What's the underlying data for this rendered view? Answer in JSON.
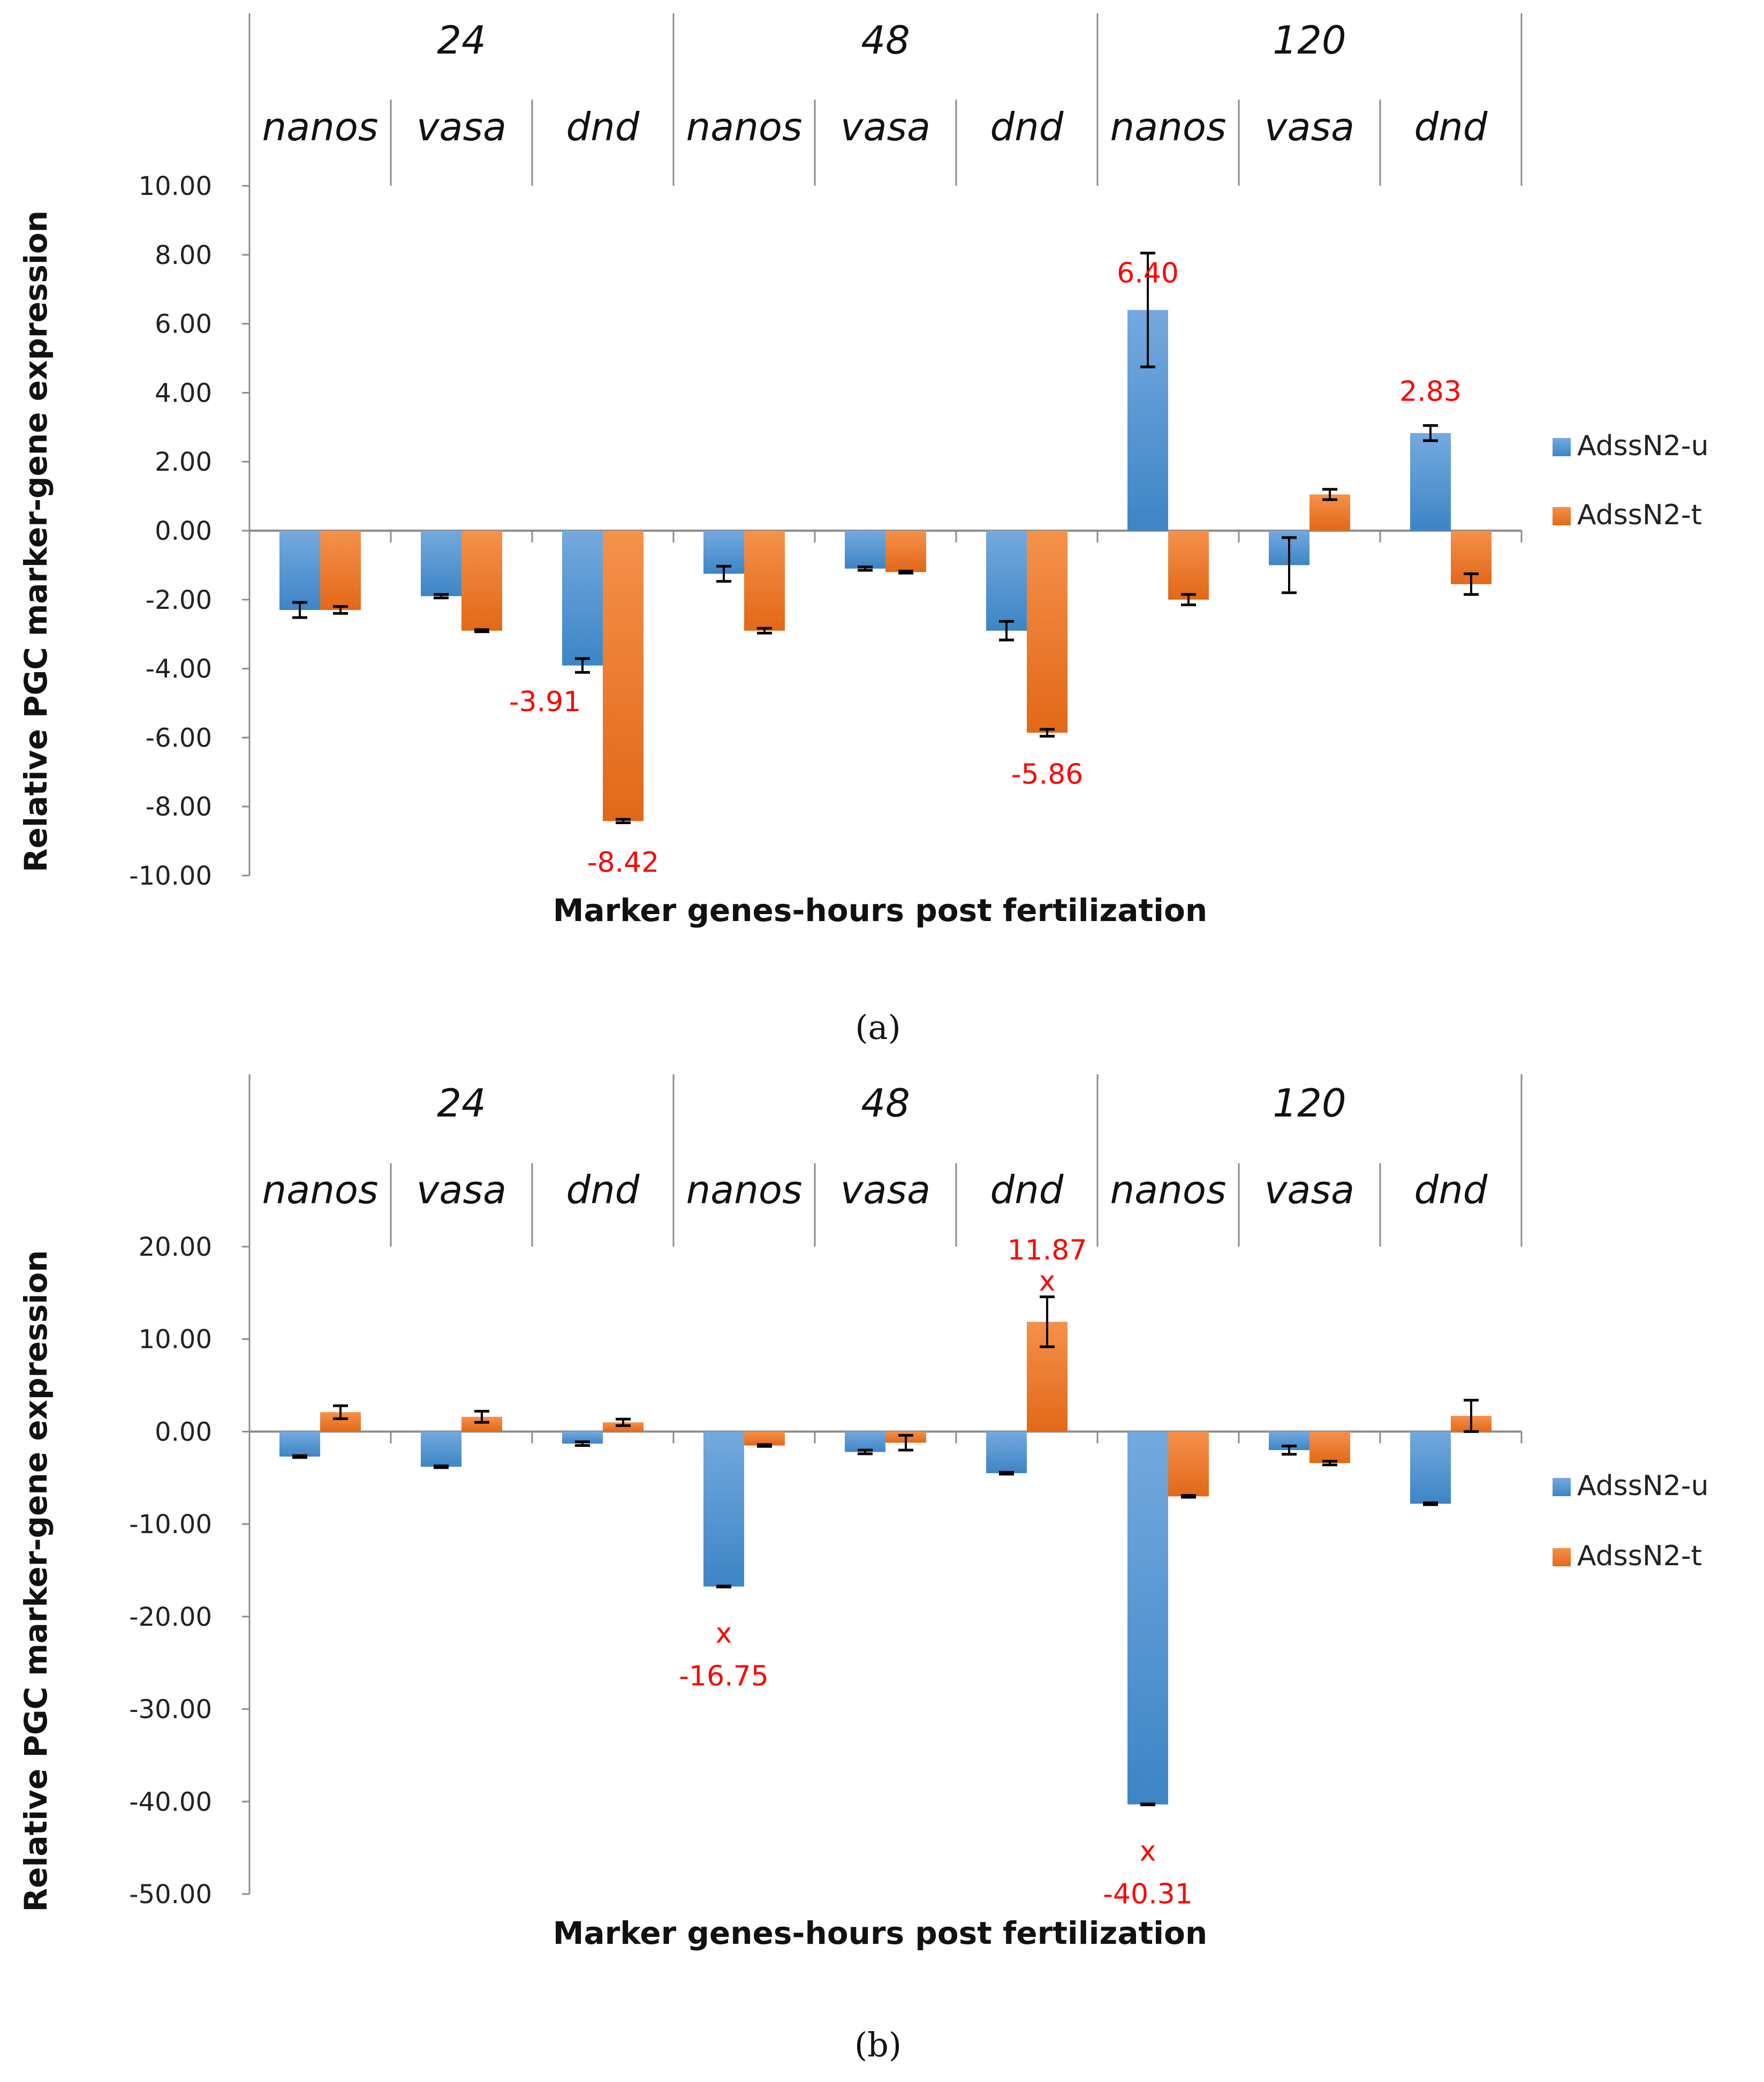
{
  "colors": {
    "u_top": "#74a9de",
    "u_bot": "#3d85c6",
    "t_top": "#f5914b",
    "t_bot": "#e26818",
    "axis": "#8c8c8c",
    "label": "#ff0000"
  },
  "chart_data": [
    {
      "type": "bar",
      "caption": "(a)",
      "xlabel": "Marker genes-hours post fertilization",
      "ylabel": "Relative PGC marker-gene expression",
      "ylim": [
        -10,
        10
      ],
      "yticks": [
        "10.00",
        "8.00",
        "6.00",
        "4.00",
        "2.00",
        "0.00",
        "-2.00",
        "-4.00",
        "-6.00",
        "-8.00",
        "-10.00"
      ],
      "ytick_values": [
        10,
        8,
        6,
        4,
        2,
        0,
        -2,
        -4,
        -6,
        -8,
        -10
      ],
      "groups": [
        "24",
        "48",
        "120"
      ],
      "categories": [
        "nanos",
        "vasa",
        "dnd",
        "nanos",
        "vasa",
        "dnd",
        "nanos",
        "vasa",
        "dnd"
      ],
      "legend": "right",
      "series": [
        {
          "name": "AdssN2-u",
          "values": [
            -2.3,
            -1.9,
            -3.91,
            -1.25,
            -1.1,
            -2.9,
            6.4,
            -1.0,
            2.83
          ],
          "errors": [
            0.22,
            0.05,
            0.2,
            0.22,
            0.05,
            0.27,
            1.65,
            0.8,
            0.22
          ]
        },
        {
          "name": "AdssN2-t",
          "values": [
            -2.3,
            -2.9,
            -8.42,
            -2.9,
            -1.2,
            -5.86,
            -2.0,
            1.05,
            -1.55
          ],
          "errors": [
            0.1,
            0.03,
            0.05,
            0.07,
            0.03,
            0.1,
            0.15,
            0.15,
            0.3
          ]
        }
      ],
      "data_labels": [
        {
          "category": 2,
          "series": 0,
          "text": "-3.91",
          "pos": "below-left"
        },
        {
          "category": 2,
          "series": 1,
          "text": "-8.42",
          "pos": "below"
        },
        {
          "category": 5,
          "series": 1,
          "text": "-5.86",
          "pos": "below"
        },
        {
          "category": 6,
          "series": 0,
          "text": "6.40",
          "pos": "top-err"
        },
        {
          "category": 8,
          "series": 0,
          "text": "2.83",
          "pos": "above"
        }
      ]
    },
    {
      "type": "bar",
      "caption": "(b)",
      "xlabel": "Marker genes-hours post fertilization",
      "ylabel": "Relative PGC marker-gene expression",
      "ylim": [
        -50,
        20
      ],
      "yticks": [
        "20.00",
        "10.00",
        "0.00",
        "-10.00",
        "-20.00",
        "-30.00",
        "-40.00",
        "-50.00"
      ],
      "ytick_values": [
        20,
        10,
        0,
        -10,
        -20,
        -30,
        -40,
        -50
      ],
      "groups": [
        "24",
        "48",
        "120"
      ],
      "categories": [
        "nanos",
        "vasa",
        "dnd",
        "nanos",
        "vasa",
        "dnd",
        "nanos",
        "vasa",
        "dnd"
      ],
      "legend": "right",
      "series": [
        {
          "name": "AdssN2-u",
          "values": [
            -2.7,
            -3.8,
            -1.3,
            -16.75,
            -2.2,
            -4.5,
            -40.31,
            -2.0,
            -7.8
          ],
          "errors": [
            0.1,
            0.1,
            0.2,
            0.05,
            0.2,
            0.1,
            0.05,
            0.45,
            0.1
          ]
        },
        {
          "name": "AdssN2-t",
          "values": [
            2.1,
            1.6,
            1.0,
            -1.5,
            -1.2,
            11.87,
            -7.0,
            -3.4,
            1.7
          ],
          "errors": [
            0.7,
            0.6,
            0.35,
            0.1,
            0.8,
            2.7,
            0.1,
            0.2,
            1.7
          ]
        }
      ],
      "data_labels": [
        {
          "category": 5,
          "series": 1,
          "text": "11.87",
          "marker": "x",
          "pos": "above-x"
        },
        {
          "category": 3,
          "series": 0,
          "text": "-16.75",
          "marker": "x",
          "pos": "below-x"
        },
        {
          "category": 6,
          "series": 0,
          "text": "-40.31",
          "marker": "x",
          "pos": "below-x"
        }
      ]
    }
  ]
}
